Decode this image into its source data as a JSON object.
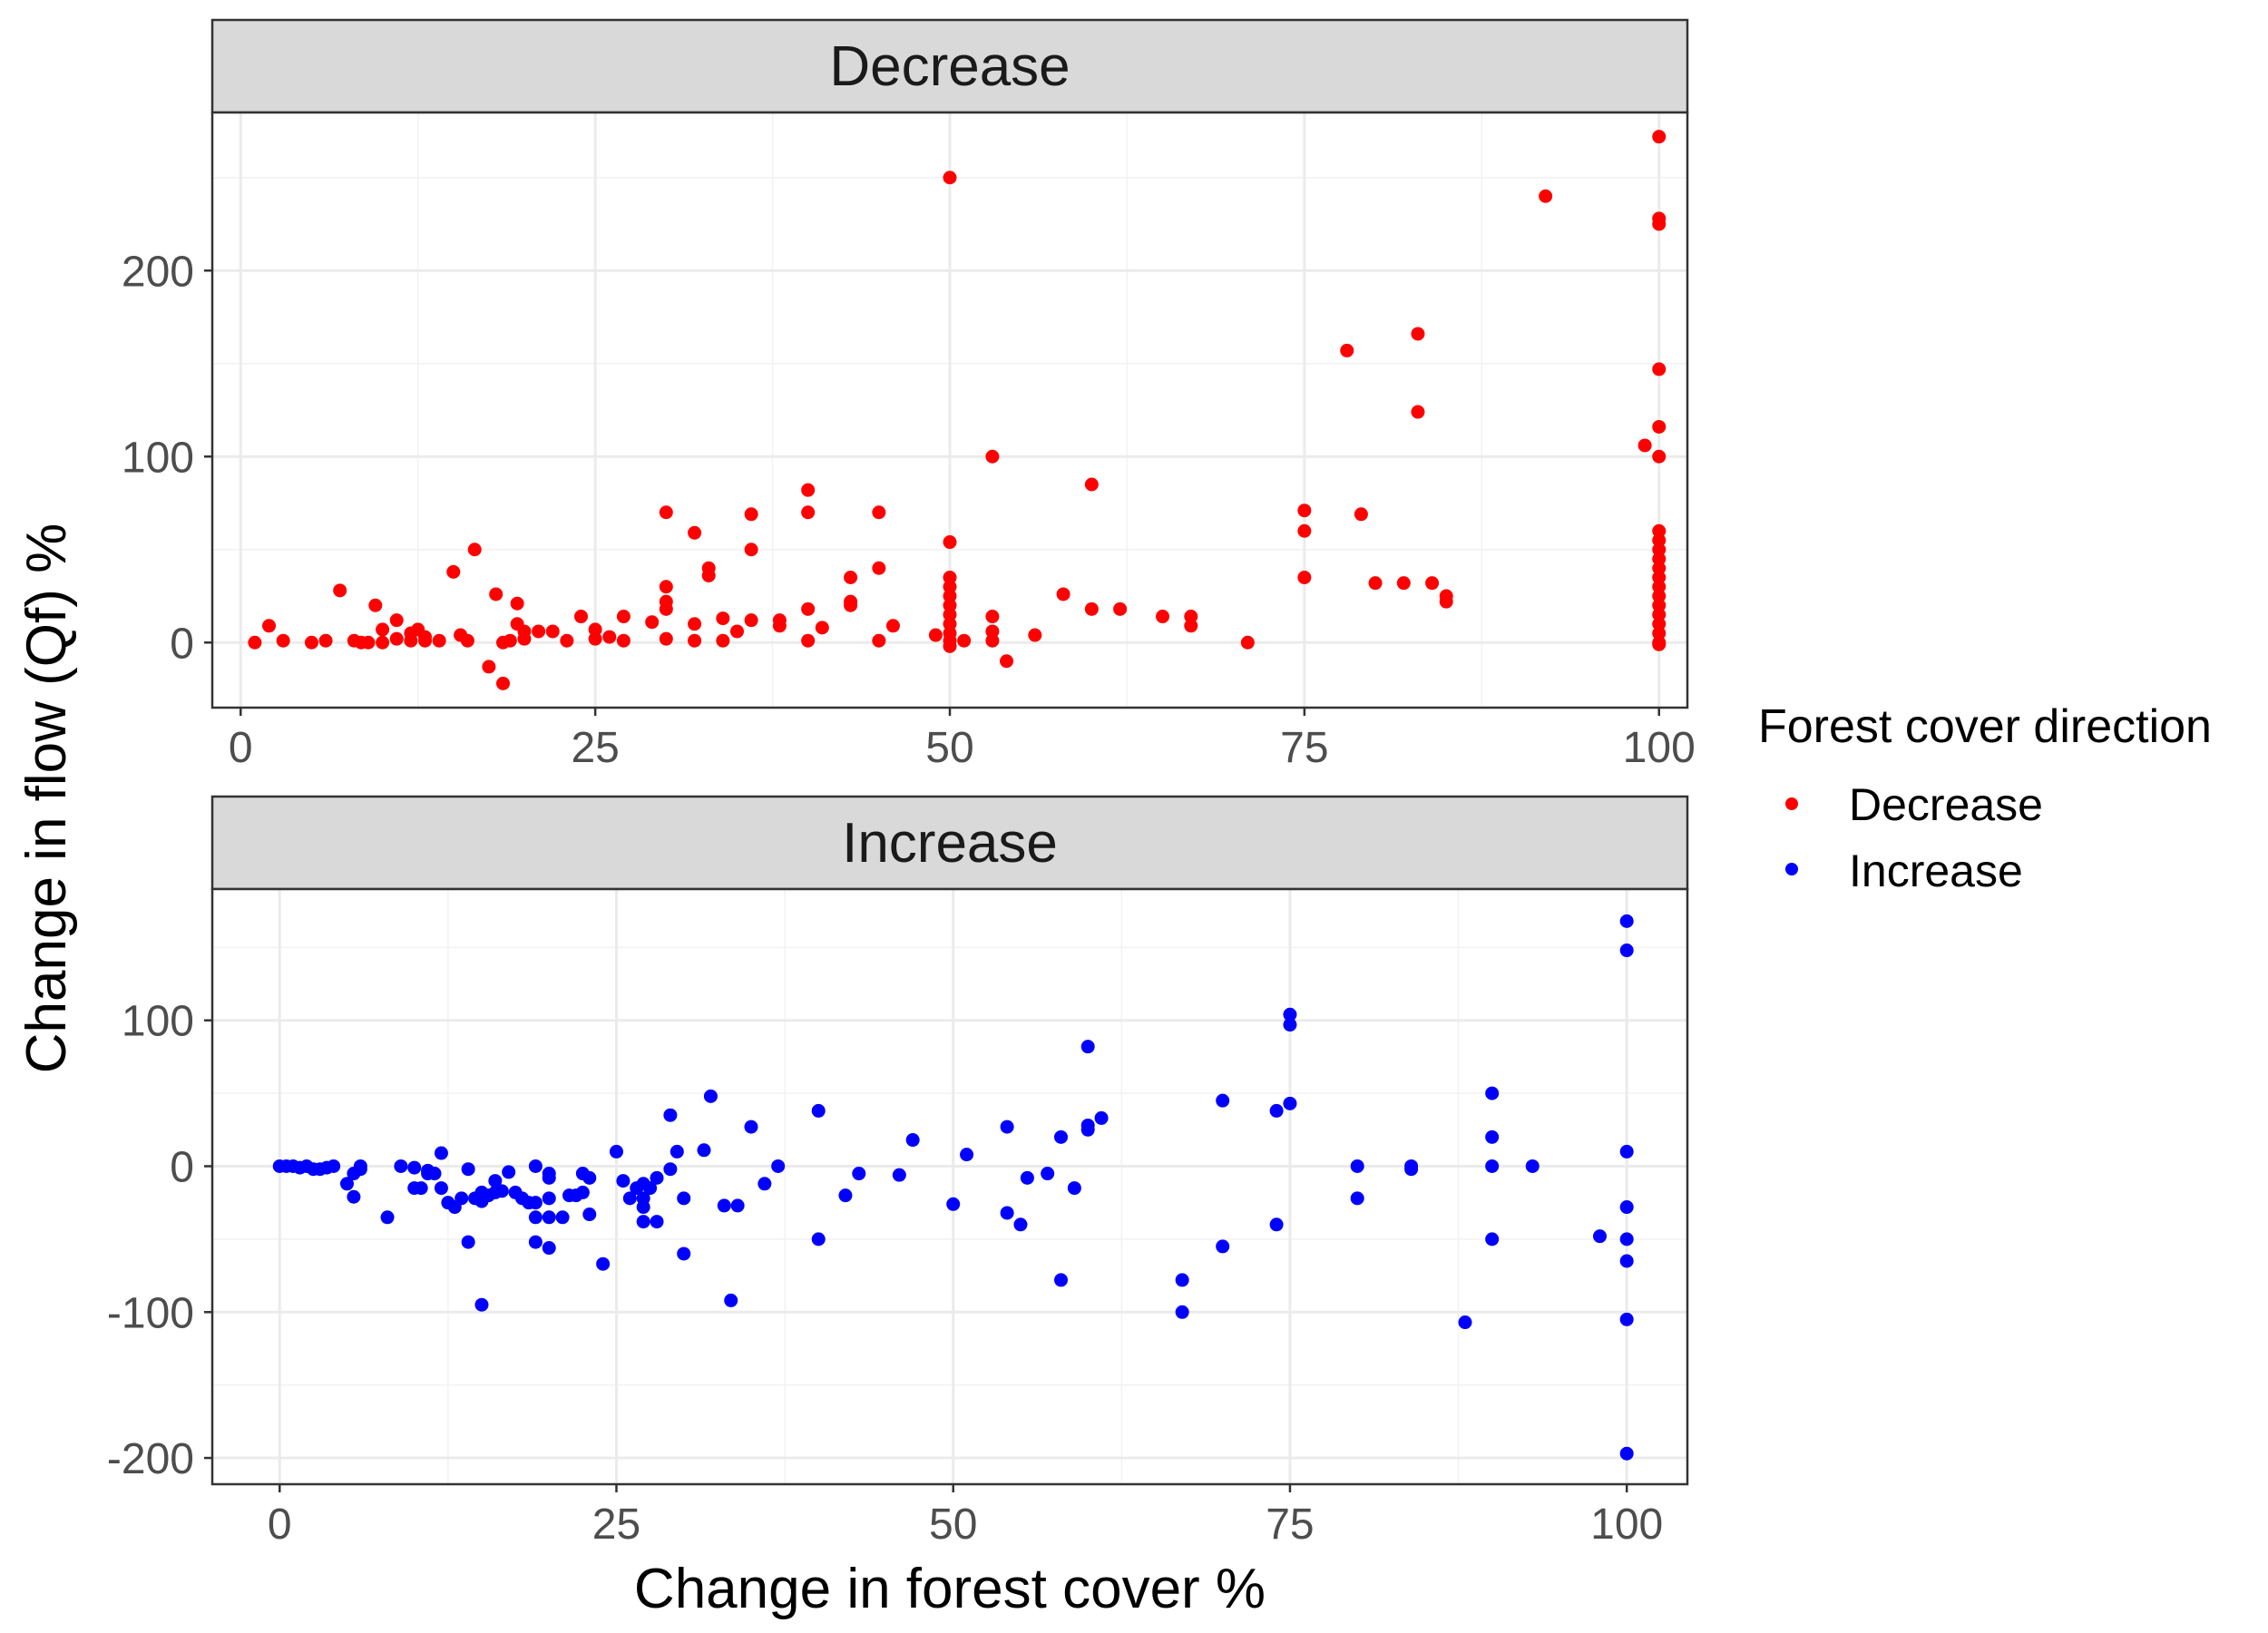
{
  "chart_data": {
    "type": "scatter",
    "xlabel": "Change in forest cover %",
    "ylabel": "Change in flow (Qf) %",
    "legend": {
      "title": "Forest cover direction",
      "position": "right",
      "entries": [
        {
          "name": "Decrease",
          "color": "#ff0000"
        },
        {
          "name": "Increase",
          "color": "#0000ff"
        }
      ]
    },
    "grid": true,
    "facets": [
      {
        "label": "Decrease",
        "series_name": "Decrease",
        "color": "#ff0000",
        "xlim": [
          -2,
          102
        ],
        "ylim": [
          -35,
          285
        ],
        "xticks": [
          0,
          25,
          50,
          75,
          100
        ],
        "xtick_labels": [
          "0",
          "25",
          "50",
          "75",
          "100"
        ],
        "yticks": [
          0,
          100,
          200
        ],
        "ytick_labels": [
          "0",
          "100",
          "200"
        ],
        "points": [
          [
            1,
            0
          ],
          [
            2,
            9
          ],
          [
            3,
            1
          ],
          [
            5,
            0
          ],
          [
            6,
            1
          ],
          [
            7,
            28
          ],
          [
            8,
            1
          ],
          [
            8.5,
            0
          ],
          [
            9,
            0
          ],
          [
            9.5,
            20
          ],
          [
            10,
            7
          ],
          [
            10,
            0
          ],
          [
            11,
            12
          ],
          [
            11,
            2
          ],
          [
            12,
            5
          ],
          [
            12,
            1
          ],
          [
            12.5,
            7
          ],
          [
            13,
            1
          ],
          [
            13,
            3
          ],
          [
            14,
            1
          ],
          [
            15,
            38
          ],
          [
            15.5,
            4
          ],
          [
            16,
            1
          ],
          [
            16.5,
            50
          ],
          [
            17.5,
            -13
          ],
          [
            18,
            26
          ],
          [
            18.5,
            0
          ],
          [
            18.5,
            -22
          ],
          [
            19,
            1
          ],
          [
            19.5,
            21
          ],
          [
            19.5,
            10
          ],
          [
            20,
            6
          ],
          [
            20,
            2
          ],
          [
            21,
            6
          ],
          [
            22,
            6
          ],
          [
            23,
            1
          ],
          [
            24,
            14
          ],
          [
            25,
            7
          ],
          [
            25,
            2
          ],
          [
            26,
            3
          ],
          [
            27,
            14
          ],
          [
            27,
            1
          ],
          [
            29,
            11
          ],
          [
            30,
            70
          ],
          [
            30,
            30
          ],
          [
            30,
            22
          ],
          [
            30,
            18
          ],
          [
            30,
            2
          ],
          [
            32,
            59
          ],
          [
            32,
            10
          ],
          [
            32,
            1
          ],
          [
            33,
            40
          ],
          [
            33,
            36
          ],
          [
            34,
            13
          ],
          [
            34,
            1
          ],
          [
            35,
            6
          ],
          [
            36,
            69
          ],
          [
            36,
            50
          ],
          [
            36,
            12
          ],
          [
            38,
            12
          ],
          [
            38,
            9
          ],
          [
            40,
            82
          ],
          [
            40,
            70
          ],
          [
            40,
            18
          ],
          [
            40,
            1
          ],
          [
            41,
            8
          ],
          [
            43,
            35
          ],
          [
            43,
            20
          ],
          [
            43,
            22
          ],
          [
            45,
            70
          ],
          [
            45,
            40
          ],
          [
            45,
            1
          ],
          [
            46,
            9
          ],
          [
            49,
            4
          ],
          [
            50,
            250
          ],
          [
            50,
            54
          ],
          [
            50,
            35
          ],
          [
            50,
            30
          ],
          [
            50,
            25
          ],
          [
            50,
            20
          ],
          [
            50,
            15
          ],
          [
            50,
            10
          ],
          [
            50,
            5
          ],
          [
            50,
            1
          ],
          [
            50,
            -2
          ],
          [
            51,
            1
          ],
          [
            53,
            100
          ],
          [
            53,
            14
          ],
          [
            53,
            6
          ],
          [
            53,
            1
          ],
          [
            54,
            -10
          ],
          [
            56,
            4
          ],
          [
            58,
            26
          ],
          [
            60,
            85
          ],
          [
            60,
            18
          ],
          [
            62,
            18
          ],
          [
            65,
            14
          ],
          [
            67,
            14
          ],
          [
            67,
            9
          ],
          [
            71,
            0
          ],
          [
            75,
            71
          ],
          [
            75,
            60
          ],
          [
            75,
            35
          ],
          [
            78,
            157
          ],
          [
            79,
            69
          ],
          [
            80,
            32
          ],
          [
            82,
            32
          ],
          [
            83,
            166
          ],
          [
            83,
            124
          ],
          [
            84,
            32
          ],
          [
            85,
            25
          ],
          [
            85,
            22
          ],
          [
            92,
            240
          ],
          [
            99,
            106
          ],
          [
            100,
            272
          ],
          [
            100,
            225
          ],
          [
            100,
            228
          ],
          [
            100,
            147
          ],
          [
            100,
            116
          ],
          [
            100,
            100
          ],
          [
            100,
            60
          ],
          [
            100,
            55
          ],
          [
            100,
            50
          ],
          [
            100,
            45
          ],
          [
            100,
            40
          ],
          [
            100,
            35
          ],
          [
            100,
            30
          ],
          [
            100,
            25
          ],
          [
            100,
            20
          ],
          [
            100,
            15
          ],
          [
            100,
            10
          ],
          [
            100,
            5
          ],
          [
            100,
            0
          ],
          [
            100,
            -1
          ]
        ]
      },
      {
        "label": "Increase",
        "series_name": "Increase",
        "color": "#0000ff",
        "xlim": [
          -5,
          104.5
        ],
        "ylim": [
          -218,
          190
        ],
        "xticks": [
          0,
          25,
          50,
          75,
          100
        ],
        "xtick_labels": [
          "0",
          "25",
          "50",
          "75",
          "100"
        ],
        "yticks": [
          -200,
          -100,
          0,
          100
        ],
        "ytick_labels": [
          "-200",
          "-100",
          "0",
          "100"
        ],
        "points": [
          [
            0,
            0
          ],
          [
            0.5,
            0
          ],
          [
            1,
            0
          ],
          [
            1.5,
            -1
          ],
          [
            2,
            0
          ],
          [
            2.5,
            -2
          ],
          [
            3,
            -2
          ],
          [
            3.5,
            -1
          ],
          [
            4,
            0
          ],
          [
            5,
            -12
          ],
          [
            5.5,
            -21
          ],
          [
            5.5,
            -5
          ],
          [
            6,
            0
          ],
          [
            6,
            -2
          ],
          [
            8,
            -35
          ],
          [
            9,
            0
          ],
          [
            10,
            -1
          ],
          [
            10,
            -15
          ],
          [
            10.5,
            -15
          ],
          [
            11,
            -3
          ],
          [
            11,
            -5
          ],
          [
            11.5,
            -5
          ],
          [
            12,
            9
          ],
          [
            12,
            -15
          ],
          [
            12.5,
            -25
          ],
          [
            13,
            -28
          ],
          [
            13.5,
            -22
          ],
          [
            14,
            -2
          ],
          [
            14,
            -52
          ],
          [
            14.5,
            -22
          ],
          [
            15,
            -18
          ],
          [
            15,
            -24
          ],
          [
            15,
            -95
          ],
          [
            15.5,
            -20
          ],
          [
            16,
            -10
          ],
          [
            16,
            -18
          ],
          [
            16.5,
            -17
          ],
          [
            17,
            -4
          ],
          [
            17.5,
            -18
          ],
          [
            18,
            -22
          ],
          [
            18.5,
            -25
          ],
          [
            19,
            -52
          ],
          [
            19,
            -35
          ],
          [
            19,
            -25
          ],
          [
            19,
            0
          ],
          [
            20,
            -56
          ],
          [
            20,
            -22
          ],
          [
            20,
            -8
          ],
          [
            20,
            -5
          ],
          [
            20,
            -35
          ],
          [
            21,
            -35
          ],
          [
            21.5,
            -20
          ],
          [
            22,
            -20
          ],
          [
            22.5,
            -18
          ],
          [
            22.5,
            -5
          ],
          [
            23,
            -33
          ],
          [
            23,
            -8
          ],
          [
            24,
            -67
          ],
          [
            25,
            10
          ],
          [
            25.5,
            -10
          ],
          [
            26,
            -22
          ],
          [
            26.5,
            -15
          ],
          [
            27,
            -12
          ],
          [
            27,
            -38
          ],
          [
            27,
            -28
          ],
          [
            27,
            -22
          ],
          [
            27.5,
            -15
          ],
          [
            28,
            -8
          ],
          [
            28,
            -38
          ],
          [
            29,
            -2
          ],
          [
            29,
            35
          ],
          [
            29.5,
            10
          ],
          [
            30,
            -22
          ],
          [
            30,
            -60
          ],
          [
            31.5,
            11
          ],
          [
            32,
            48
          ],
          [
            33,
            -27
          ],
          [
            33.5,
            -92
          ],
          [
            34,
            -27
          ],
          [
            35,
            27
          ],
          [
            36,
            -12
          ],
          [
            37,
            0
          ],
          [
            40,
            38
          ],
          [
            40,
            -50
          ],
          [
            42,
            -20
          ],
          [
            43,
            -5
          ],
          [
            46,
            -6
          ],
          [
            47,
            18
          ],
          [
            50,
            -26
          ],
          [
            51,
            8
          ],
          [
            54,
            27
          ],
          [
            54,
            -32
          ],
          [
            55,
            -40
          ],
          [
            55.5,
            -8
          ],
          [
            57,
            -5
          ],
          [
            58,
            20
          ],
          [
            58,
            -78
          ],
          [
            59,
            -15
          ],
          [
            60,
            82
          ],
          [
            60,
            28
          ],
          [
            60,
            25
          ],
          [
            61,
            33
          ],
          [
            67,
            -78
          ],
          [
            67,
            -100
          ],
          [
            70,
            45
          ],
          [
            70,
            -55
          ],
          [
            74,
            38
          ],
          [
            74,
            -40
          ],
          [
            75,
            104
          ],
          [
            75,
            97
          ],
          [
            75,
            43
          ],
          [
            80,
            0
          ],
          [
            80,
            -22
          ],
          [
            84,
            0
          ],
          [
            84,
            -2
          ],
          [
            88,
            -107
          ],
          [
            90,
            50
          ],
          [
            90,
            20
          ],
          [
            90,
            0
          ],
          [
            90,
            -50
          ],
          [
            93,
            0
          ],
          [
            98,
            -48
          ],
          [
            100,
            168
          ],
          [
            100,
            148
          ],
          [
            100,
            10
          ],
          [
            100,
            -28
          ],
          [
            100,
            -50
          ],
          [
            100,
            -65
          ],
          [
            100,
            -105
          ],
          [
            100,
            -197
          ]
        ]
      }
    ]
  }
}
